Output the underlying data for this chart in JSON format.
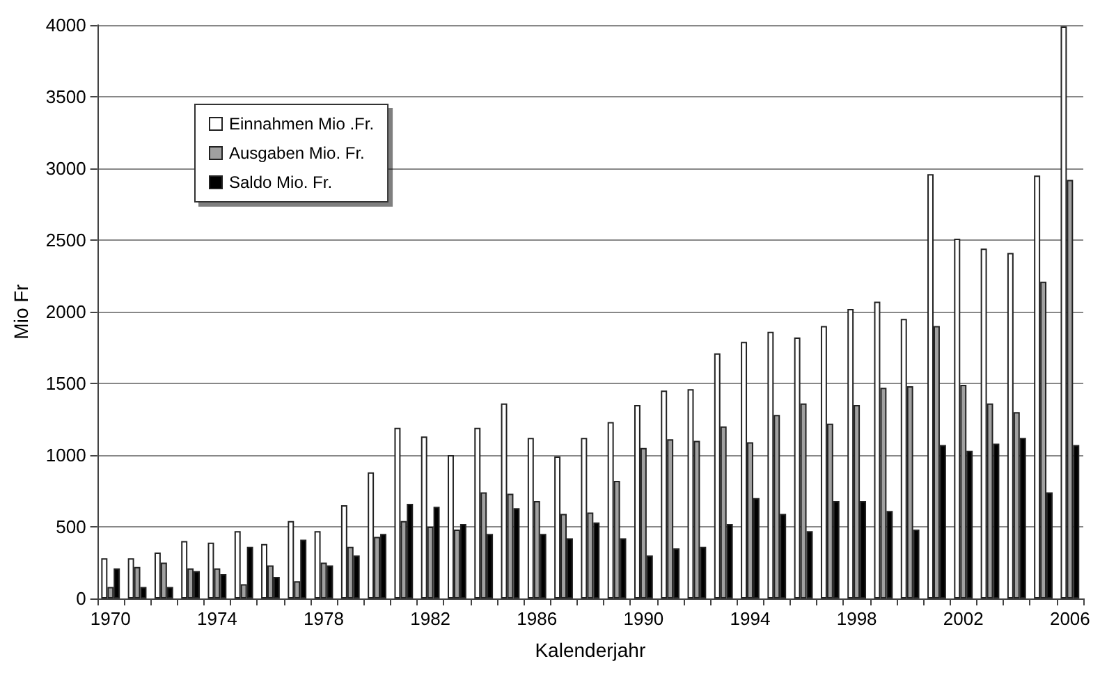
{
  "chart_data": {
    "type": "bar",
    "xlabel": "Kalenderjahr",
    "ylabel": "Mio Fr",
    "categories": [
      "1970",
      null,
      null,
      null,
      "1974",
      null,
      null,
      null,
      "1978",
      null,
      null,
      null,
      "1982",
      null,
      null,
      null,
      "1986",
      null,
      null,
      null,
      "1990",
      null,
      null,
      null,
      "1994",
      null,
      null,
      null,
      "1998",
      null,
      null,
      null,
      "2002",
      null,
      null,
      null,
      "2006"
    ],
    "series": [
      {
        "name": "Einnahmen Mio .Fr.",
        "color": "#ffffff",
        "values": [
          280,
          280,
          320,
          400,
          390,
          470,
          380,
          540,
          470,
          650,
          880,
          1190,
          1130,
          1000,
          1190,
          1360,
          1120,
          990,
          1120,
          1230,
          1350,
          1450,
          1460,
          1710,
          1790,
          1860,
          1820,
          1900,
          2020,
          2070,
          1950,
          2960,
          2510,
          2440,
          2410,
          2950,
          3990
        ]
      },
      {
        "name": "Ausgaben Mio. Fr.",
        "color": "#a0a0a0",
        "values": [
          80,
          220,
          250,
          210,
          210,
          100,
          230,
          120,
          250,
          360,
          430,
          540,
          500,
          480,
          740,
          730,
          680,
          590,
          600,
          820,
          1050,
          1110,
          1100,
          1200,
          1090,
          1280,
          1360,
          1220,
          1350,
          1470,
          1480,
          1900,
          1490,
          1360,
          1300,
          2210,
          2920
        ]
      },
      {
        "name": "Saldo Mio. Fr.",
        "color": "#000000",
        "values": [
          210,
          80,
          80,
          190,
          170,
          360,
          150,
          410,
          230,
          300,
          450,
          660,
          640,
          520,
          450,
          630,
          450,
          420,
          530,
          420,
          300,
          350,
          360,
          520,
          700,
          590,
          470,
          680,
          680,
          610,
          480,
          1070,
          1030,
          1080,
          1120,
          740,
          1070
        ]
      }
    ],
    "ylim": [
      0,
      4000
    ],
    "yticks": [
      0,
      500,
      1000,
      1500,
      2000,
      2500,
      3000,
      3500,
      4000
    ],
    "grid": "y",
    "legend": "top left"
  }
}
